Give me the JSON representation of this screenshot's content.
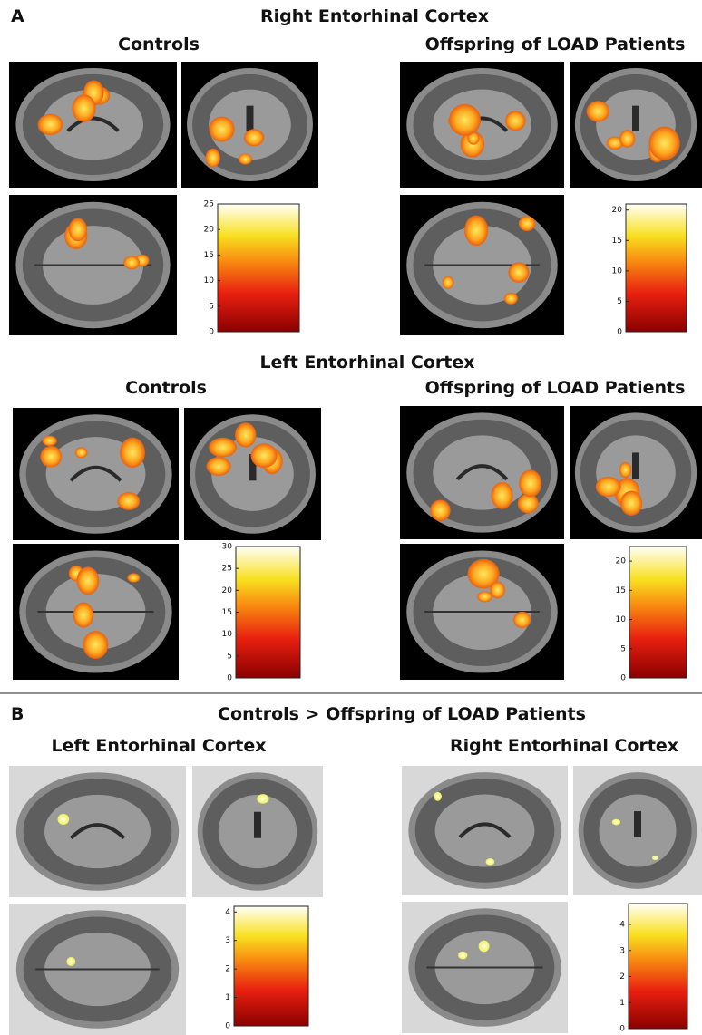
{
  "panels": [
    {
      "label": "A",
      "sections": [
        {
          "title": "Right Entorhinal Cortex",
          "groups": [
            {
              "title": "Controls",
              "colorbar": {
                "range": [
                  0,
                  25
                ],
                "ticks": [
                  0,
                  5,
                  10,
                  15,
                  20,
                  25
                ]
              }
            },
            {
              "title": "Offspring of LOAD Patients",
              "colorbar": {
                "range": [
                  0,
                  21
                ],
                "ticks": [
                  0,
                  5,
                  10,
                  15,
                  20
                ]
              }
            }
          ]
        },
        {
          "title": "Left Entorhinal Cortex",
          "groups": [
            {
              "title": "Controls",
              "colorbar": {
                "range": [
                  0,
                  30
                ],
                "ticks": [
                  0,
                  5,
                  10,
                  15,
                  20,
                  25,
                  30
                ]
              }
            },
            {
              "title": "Offspring of LOAD Patients",
              "colorbar": {
                "range": [
                  0,
                  22.5
                ],
                "ticks": [
                  0,
                  5,
                  10,
                  15,
                  20
                ]
              }
            }
          ]
        }
      ]
    },
    {
      "label": "B",
      "title": "Controls > Offspring of LOAD Patients",
      "groups": [
        {
          "title": "Left Entorhinal Cortex",
          "colorbar": {
            "range": [
              0,
              4.2
            ],
            "ticks": [
              0,
              1,
              2,
              3,
              4
            ]
          }
        },
        {
          "title": "Right Entorhinal Cortex",
          "colorbar": {
            "range": [
              0,
              4.8
            ],
            "ticks": [
              0,
              1,
              2,
              3,
              4
            ]
          }
        }
      ]
    }
  ]
}
